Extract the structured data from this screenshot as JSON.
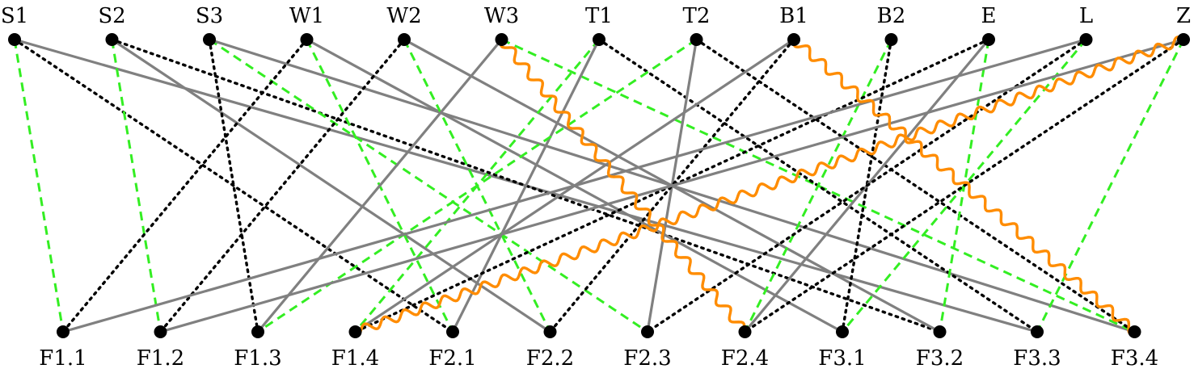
{
  "top_nodes": [
    {
      "id": "S1",
      "label": "S1"
    },
    {
      "id": "S2",
      "label": "S2"
    },
    {
      "id": "S3",
      "label": "S3"
    },
    {
      "id": "W1",
      "label": "W1"
    },
    {
      "id": "W2",
      "label": "W2"
    },
    {
      "id": "W3",
      "label": "W3"
    },
    {
      "id": "T1",
      "label": "T1"
    },
    {
      "id": "T2",
      "label": "T2"
    },
    {
      "id": "B1",
      "label": "B1"
    },
    {
      "id": "B2",
      "label": "B2"
    },
    {
      "id": "E",
      "label": "E"
    },
    {
      "id": "L",
      "label": "L"
    },
    {
      "id": "Z",
      "label": "Z"
    }
  ],
  "bottom_nodes": [
    {
      "id": "F1.1",
      "label": "F1.1"
    },
    {
      "id": "F1.2",
      "label": "F1.2"
    },
    {
      "id": "F1.3",
      "label": "F1.3"
    },
    {
      "id": "F1.4",
      "label": "F1.4"
    },
    {
      "id": "F2.1",
      "label": "F2.1"
    },
    {
      "id": "F2.2",
      "label": "F2.2"
    },
    {
      "id": "F2.3",
      "label": "F2.3"
    },
    {
      "id": "F2.4",
      "label": "F2.4"
    },
    {
      "id": "F3.1",
      "label": "F3.1"
    },
    {
      "id": "F3.2",
      "label": "F3.2"
    },
    {
      "id": "F3.3",
      "label": "F3.3"
    },
    {
      "id": "F3.4",
      "label": "F3.4"
    }
  ],
  "edge_styles": {
    "solid": {
      "color": "#808080",
      "line": "solid"
    },
    "dotted": {
      "color": "#000000",
      "line": "dotted"
    },
    "dashed": {
      "color": "#33ee22",
      "line": "dashed"
    },
    "wavy": {
      "color": "#ff8c00",
      "line": "wavy"
    }
  },
  "edges": [
    {
      "from": "S1",
      "to": "F1.1",
      "style": "dashed"
    },
    {
      "from": "S1",
      "to": "F2.1",
      "style": "dotted"
    },
    {
      "from": "S1",
      "to": "F3.3",
      "style": "solid"
    },
    {
      "from": "S2",
      "to": "F1.2",
      "style": "dashed"
    },
    {
      "from": "S2",
      "to": "F2.2",
      "style": "solid"
    },
    {
      "from": "S2",
      "to": "F3.2",
      "style": "dotted"
    },
    {
      "from": "S3",
      "to": "F1.3",
      "style": "dotted"
    },
    {
      "from": "S3",
      "to": "F2.3",
      "style": "dashed"
    },
    {
      "from": "S3",
      "to": "F3.4",
      "style": "solid"
    },
    {
      "from": "W1",
      "to": "F1.1",
      "style": "dotted"
    },
    {
      "from": "W1",
      "to": "F2.1",
      "style": "dashed"
    },
    {
      "from": "W1",
      "to": "F3.1",
      "style": "solid"
    },
    {
      "from": "W2",
      "to": "F1.2",
      "style": "dotted"
    },
    {
      "from": "W2",
      "to": "F2.2",
      "style": "dashed"
    },
    {
      "from": "W2",
      "to": "F3.2",
      "style": "solid"
    },
    {
      "from": "W3",
      "to": "F1.3",
      "style": "solid"
    },
    {
      "from": "W3",
      "to": "F2.4",
      "style": "wavy"
    },
    {
      "from": "W3",
      "to": "F3.4",
      "style": "dashed"
    },
    {
      "from": "T1",
      "to": "F1.4",
      "style": "dashed"
    },
    {
      "from": "T1",
      "to": "F2.1",
      "style": "solid"
    },
    {
      "from": "T1",
      "to": "F3.3",
      "style": "dotted"
    },
    {
      "from": "T2",
      "to": "F1.3",
      "style": "dashed"
    },
    {
      "from": "T2",
      "to": "F2.3",
      "style": "solid"
    },
    {
      "from": "T2",
      "to": "F3.4",
      "style": "dotted"
    },
    {
      "from": "B1",
      "to": "F1.4",
      "style": "solid"
    },
    {
      "from": "B1",
      "to": "F2.2",
      "style": "dotted"
    },
    {
      "from": "B1",
      "to": "F3.4",
      "style": "wavy"
    },
    {
      "from": "B2",
      "to": "F2.4",
      "style": "dashed"
    },
    {
      "from": "B2",
      "to": "F3.1",
      "style": "dotted"
    },
    {
      "from": "E",
      "to": "F1.4",
      "style": "dotted"
    },
    {
      "from": "E",
      "to": "F2.4",
      "style": "solid"
    },
    {
      "from": "E",
      "to": "F3.2",
      "style": "dashed"
    },
    {
      "from": "L",
      "to": "F1.1",
      "style": "solid"
    },
    {
      "from": "L",
      "to": "F2.3",
      "style": "dotted"
    },
    {
      "from": "L",
      "to": "F3.1",
      "style": "dashed"
    },
    {
      "from": "Z",
      "to": "F1.4",
      "style": "wavy"
    },
    {
      "from": "Z",
      "to": "F1.2",
      "style": "solid"
    },
    {
      "from": "Z",
      "to": "F2.4",
      "style": "dotted"
    },
    {
      "from": "Z",
      "to": "F3.3",
      "style": "dashed"
    }
  ]
}
